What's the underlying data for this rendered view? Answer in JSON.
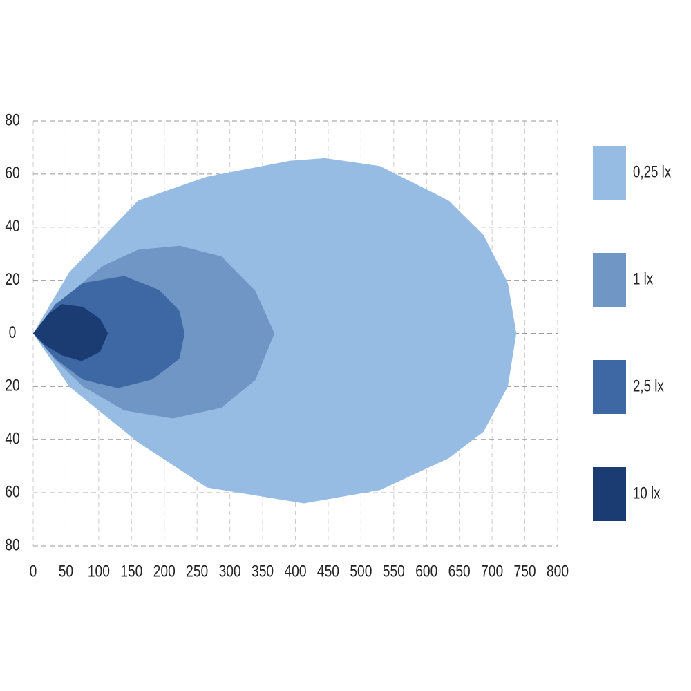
{
  "chart_data": {
    "type": "isolux",
    "xlim": [
      0,
      800
    ],
    "ylim": [
      -80,
      80
    ],
    "xticks": [
      0,
      50,
      100,
      150,
      200,
      250,
      300,
      350,
      400,
      450,
      500,
      550,
      600,
      650,
      700,
      750,
      800
    ],
    "yticks": [
      {
        "value": -80,
        "label": "80"
      },
      {
        "value": -60,
        "label": "60"
      },
      {
        "value": -40,
        "label": "40"
      },
      {
        "value": -20,
        "label": "20"
      },
      0,
      20,
      40,
      60,
      80
    ],
    "grid": true,
    "legend": "right",
    "series": [
      {
        "name": "0,25 lx",
        "color": "#97bce3",
        "x": [
          0,
          55,
          160,
          265,
          392,
          445,
          529,
          634,
          687,
          724,
          737,
          724,
          687,
          634,
          529,
          413,
          265,
          160,
          55
        ],
        "y": [
          0,
          23,
          50,
          59,
          65,
          66,
          63,
          50,
          37,
          19,
          0,
          -20,
          -37,
          -47,
          -59,
          -64,
          -58,
          -41,
          -20
        ]
      },
      {
        "name": "1 lx",
        "color": "#7096c6",
        "x": [
          0,
          55,
          107,
          160,
          223,
          287,
          339,
          368,
          339,
          287,
          213,
          139,
          76,
          34
        ],
        "y": [
          0,
          15,
          25.5,
          31.5,
          33,
          29,
          16,
          0,
          -17.5,
          -28,
          -32,
          -29,
          -20,
          -10
        ]
      },
      {
        "name": "2,5 lx",
        "color": "#3e68a3",
        "x": [
          0,
          34,
          76,
          139,
          192,
          223,
          231,
          223,
          181,
          129,
          76,
          34
        ],
        "y": [
          0,
          11,
          19,
          21.6,
          16.4,
          8.6,
          0,
          -9.6,
          -17.4,
          -20.6,
          -17.4,
          -9.6
        ]
      },
      {
        "name": "10 lx",
        "color": "#1b3b73",
        "x": [
          0,
          23,
          44,
          76,
          102,
          114,
          102,
          74,
          44,
          18
        ],
        "y": [
          0,
          7.3,
          11,
          10,
          5.5,
          0,
          -7,
          -10.4,
          -8.3,
          -4.4
        ]
      }
    ]
  }
}
